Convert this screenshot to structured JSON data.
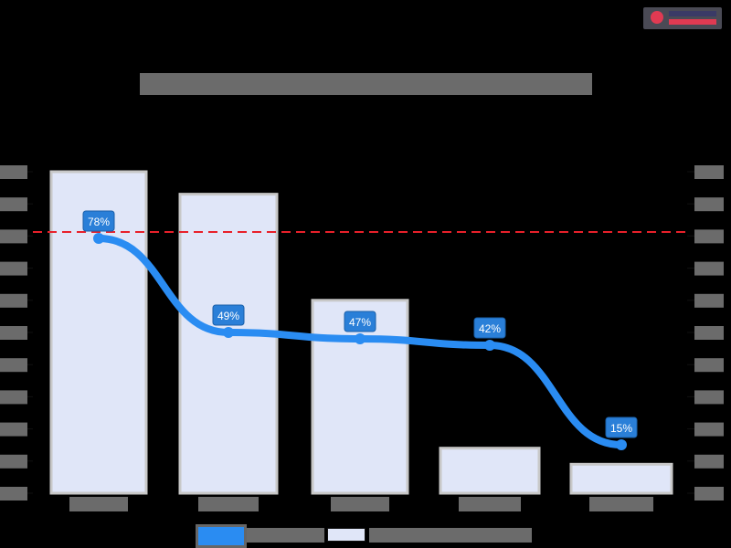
{
  "title": "",
  "note": "Title, axis tick labels, category labels and legend text are obscured (pixelated) in the source image and cannot be read.",
  "legend": {
    "items": [
      {
        "label": "",
        "type": "line",
        "color": "#2a8cf2"
      },
      {
        "label": "",
        "type": "bar",
        "color": "#e0e6f8"
      }
    ]
  },
  "colors": {
    "line": "#2a8cf2",
    "bar_fill": "#e0e6f8",
    "bar_edge": "#c8c8c8",
    "reference_line": "#e8202a",
    "data_label_bg": "#2a7fd8",
    "data_label_text": "#ffffff"
  },
  "chart_data": {
    "type": "bar+line",
    "title": "",
    "categories": [
      "",
      "",
      "",
      "",
      ""
    ],
    "series": [
      {
        "name": "",
        "type": "bar",
        "axis": "right",
        "relative_heights": [
          1.0,
          0.93,
          0.6,
          0.14,
          0.09
        ]
      },
      {
        "name": "",
        "type": "line",
        "axis": "left",
        "values": [
          78,
          49,
          47,
          42,
          15
        ],
        "labels": [
          "78%",
          "49%",
          "47%",
          "42%",
          "15%"
        ]
      }
    ],
    "reference_line": {
      "style": "dashed",
      "color": "#e8202a",
      "position": "at approx 78% line value level"
    },
    "left_axis": {
      "tick_count": 11,
      "tick_labels": []
    },
    "right_axis": {
      "tick_count": 11,
      "tick_labels": []
    },
    "xlabel": "",
    "ylabel": "",
    "legend_position": "bottom",
    "grid": false
  }
}
